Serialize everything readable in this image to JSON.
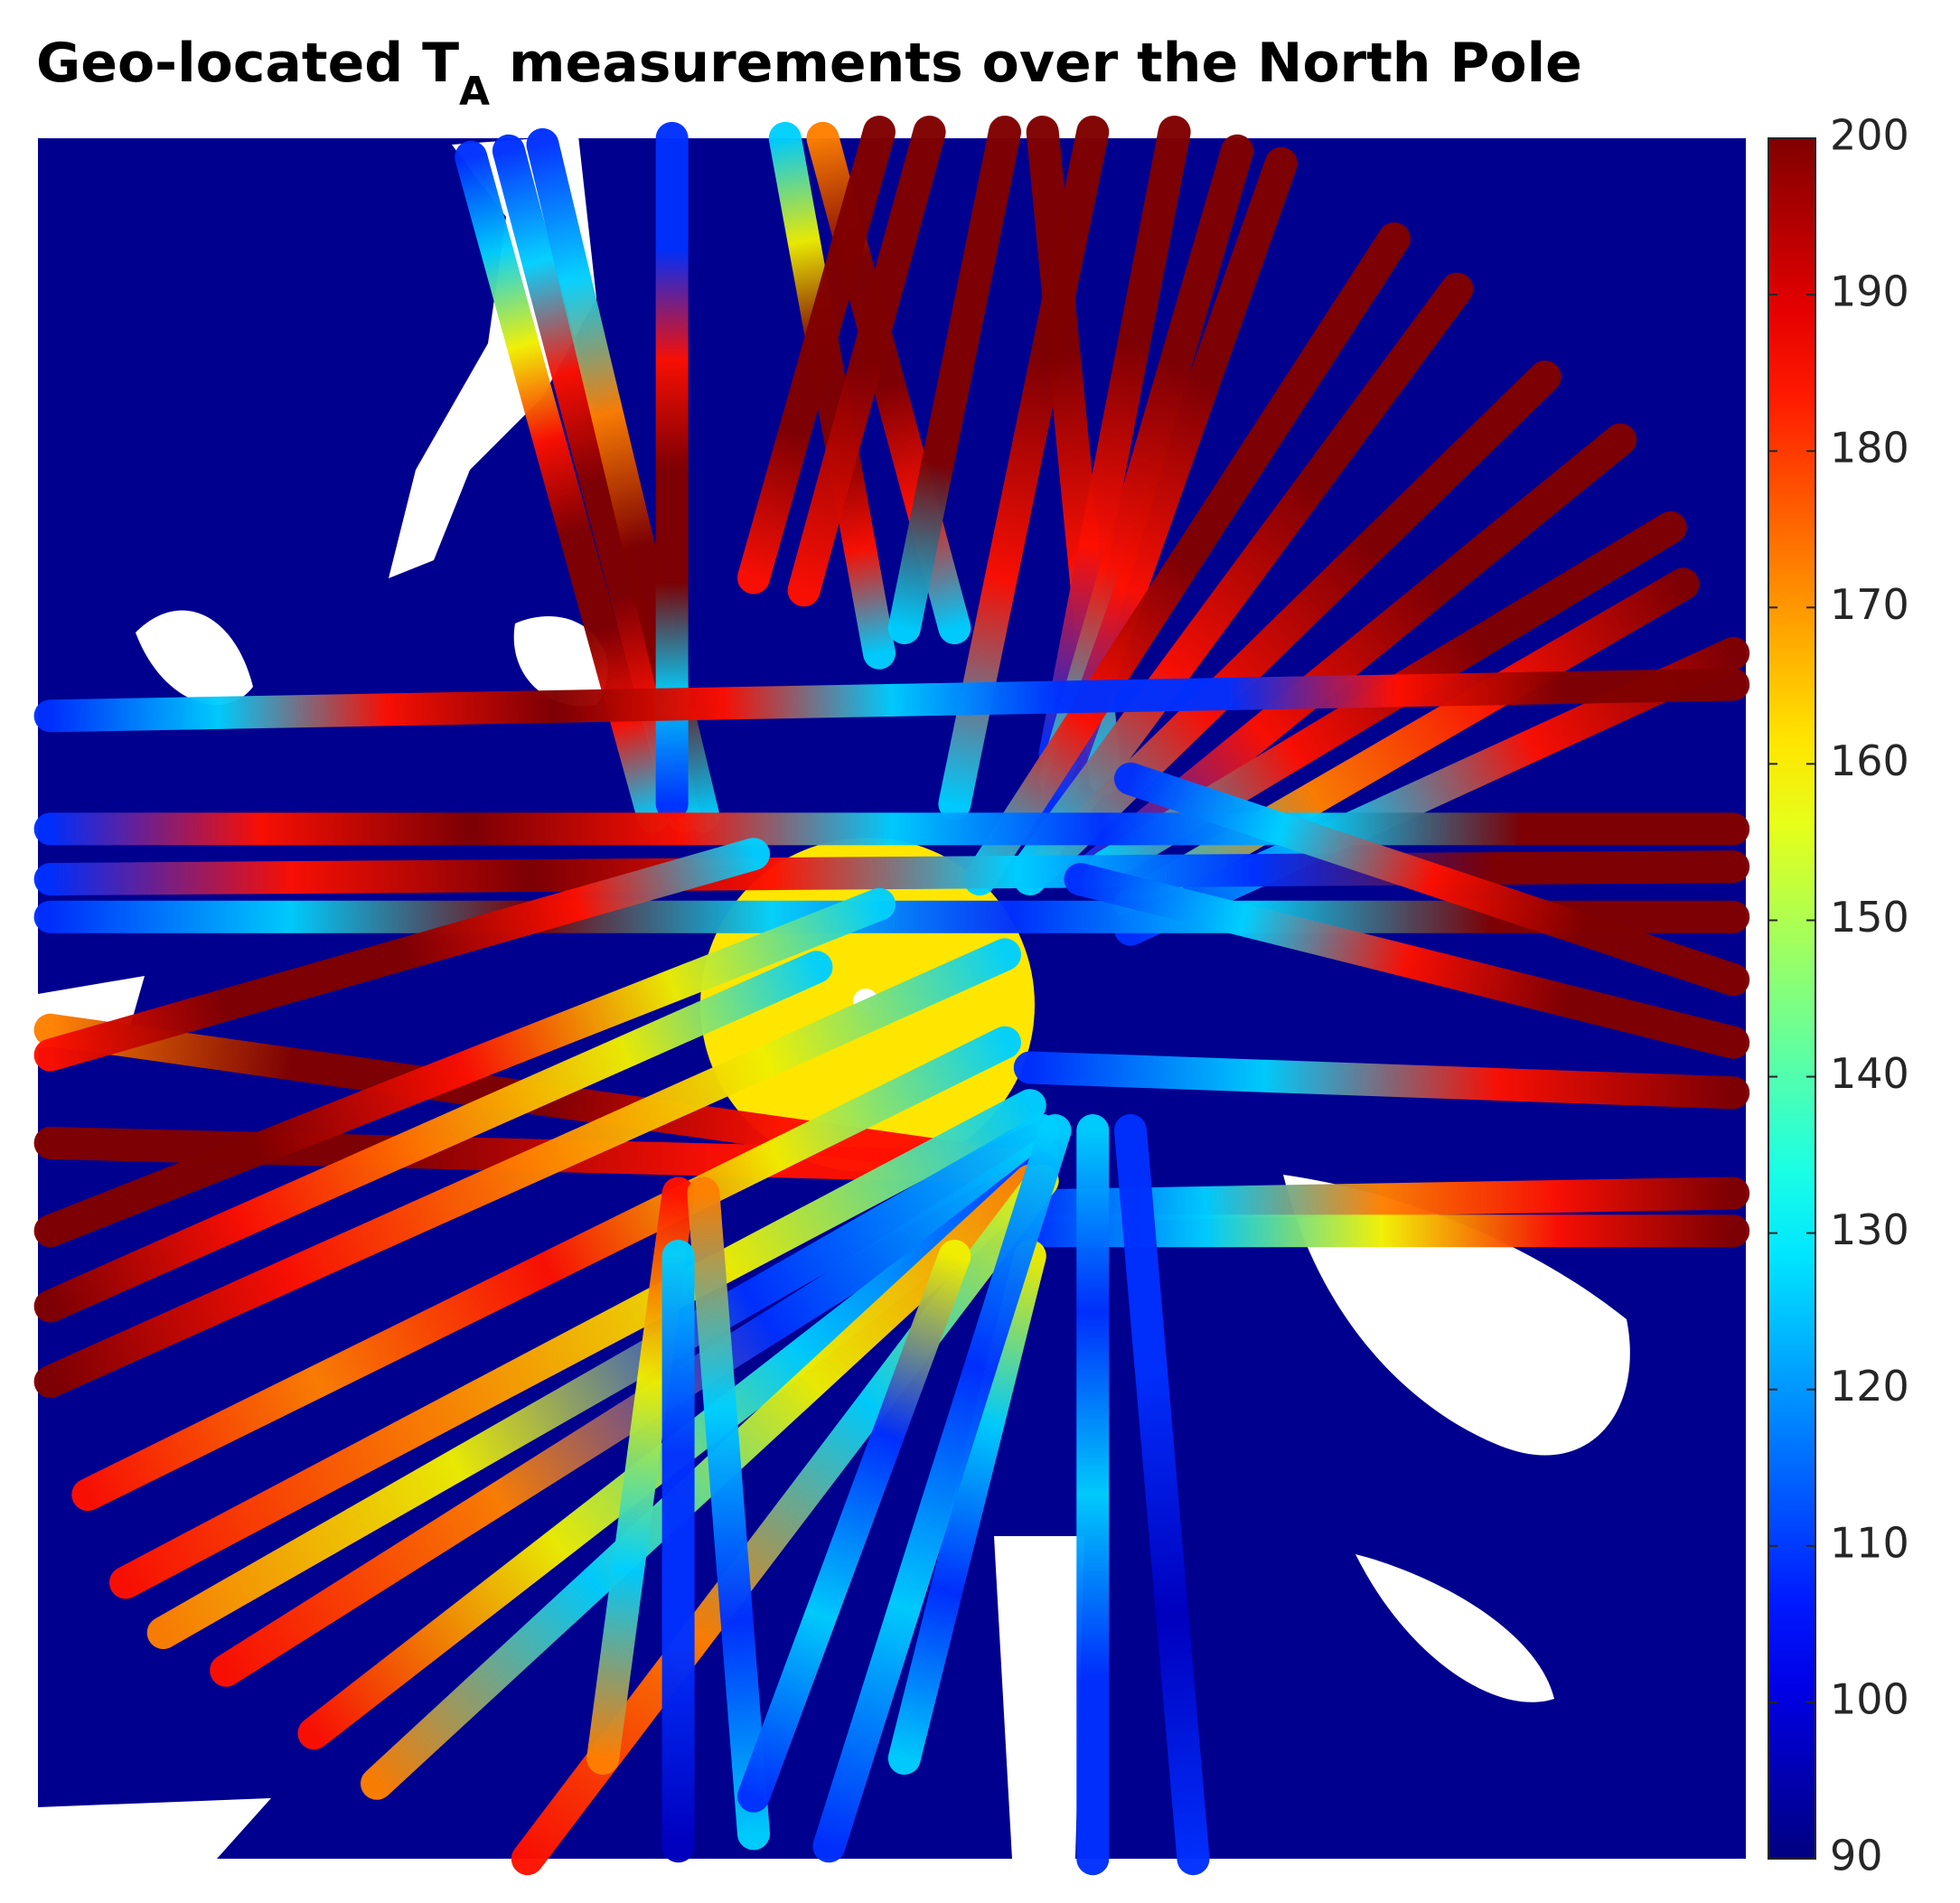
{
  "chart_data": {
    "type": "map",
    "title": {
      "main": "Geo-located T",
      "subscript": "A",
      "rest": " measurements over the North Pole"
    },
    "colorbar": {
      "colormap": "jet",
      "clim": [
        90,
        200
      ],
      "ticks": [
        90,
        100,
        110,
        120,
        130,
        140,
        150,
        160,
        170,
        180,
        190,
        200
      ]
    }
  }
}
